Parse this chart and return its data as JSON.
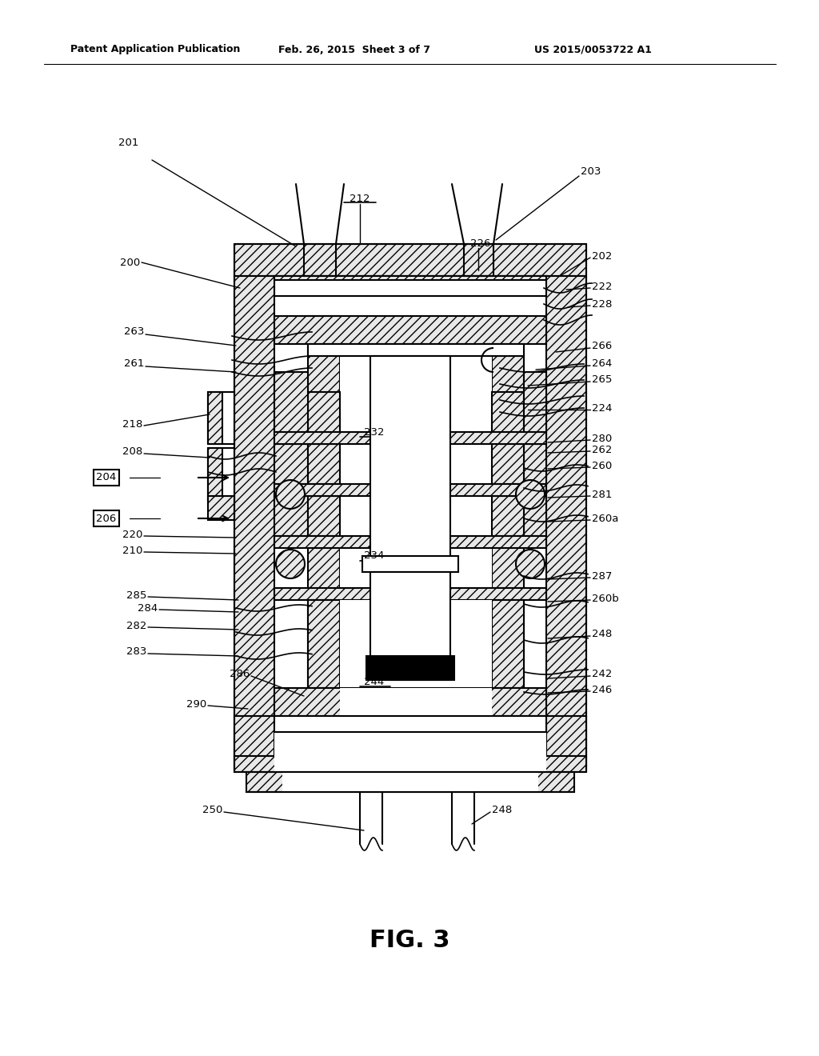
{
  "header_left": "Patent Application Publication",
  "header_mid": "Feb. 26, 2015  Sheet 3 of 7",
  "header_right": "US 2015/0053722 A1",
  "fig_label": "FIG. 3",
  "bg_color": "#ffffff"
}
